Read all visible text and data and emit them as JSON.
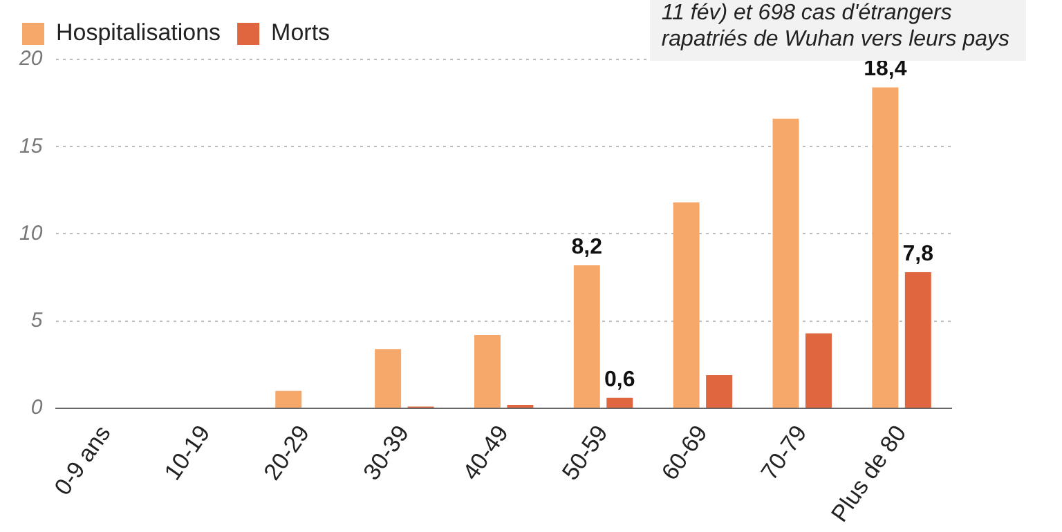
{
  "chart_data": {
    "type": "bar",
    "categories": [
      "0-9 ans",
      "10-19",
      "20-29",
      "30-39",
      "40-49",
      "50-59",
      "60-69",
      "70-79",
      "Plus de 80"
    ],
    "series": [
      {
        "name": "Hospitalisations",
        "color": "#f6a86b",
        "values": [
          0,
          0,
          1.0,
          3.4,
          4.2,
          8.2,
          11.8,
          16.6,
          18.4
        ],
        "value_labels": [
          null,
          null,
          null,
          null,
          null,
          "8,2",
          null,
          null,
          "18,4"
        ]
      },
      {
        "name": "Morts",
        "color": "#e0663f",
        "values": [
          0,
          0,
          0,
          0.1,
          0.2,
          0.6,
          1.9,
          4.3,
          7.8
        ],
        "value_labels": [
          null,
          null,
          null,
          null,
          null,
          "0,6",
          null,
          null,
          "7,8"
        ]
      }
    ],
    "ylim": [
      0,
      20
    ],
    "yticks": [
      0,
      5,
      10,
      15,
      20
    ],
    "grid": "y",
    "legend": "top left",
    "annotations": [
      "11 fév) et 698 cas d'étrangers",
      "rapatriés de Wuhan vers leurs pays"
    ]
  }
}
